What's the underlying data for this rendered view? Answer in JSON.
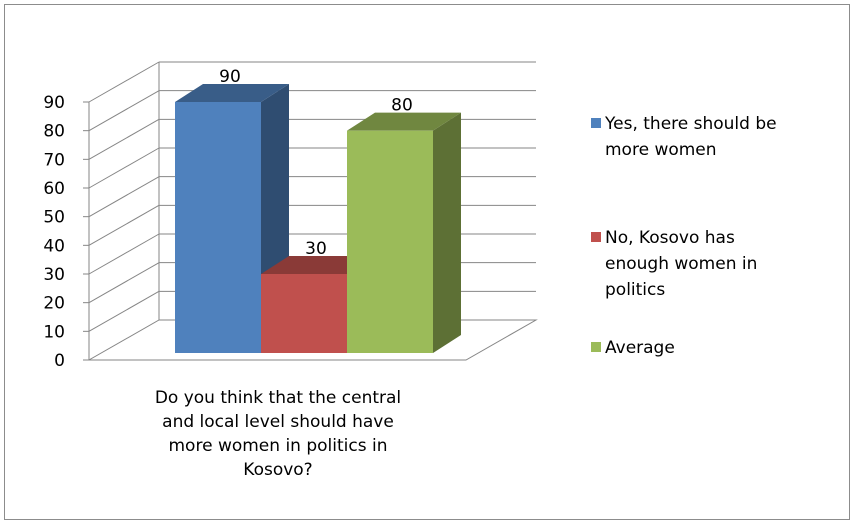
{
  "chart_data": {
    "type": "bar",
    "style": "3d-clustered-column",
    "categories": [
      "Do you think that the central and local level should have more women in politics in Kosovo?"
    ],
    "category_lines": [
      "Do you think that the central",
      "and local level should have",
      "more women in politics in",
      "Kosovo?"
    ],
    "series": [
      {
        "name": "Yes, there should be more women",
        "legend_lines": [
          "Yes, there should be",
          "more women"
        ],
        "values": [
          90
        ],
        "color": "#4F81BD"
      },
      {
        "name": "No, Kosovo has enough women in politics",
        "legend_lines": [
          "No, Kosovo has",
          "enough women in",
          "politics"
        ],
        "values": [
          30
        ],
        "color": "#C0504D"
      },
      {
        "name": "Average",
        "legend_lines": [
          "Average"
        ],
        "values": [
          80
        ],
        "color": "#9BBB59"
      }
    ],
    "data_labels": [
      "90",
      "30",
      "80"
    ],
    "y_ticks": [
      "0",
      "10",
      "20",
      "30",
      "40",
      "50",
      "60",
      "70",
      "80",
      "90"
    ],
    "ylim": [
      0,
      90
    ],
    "grid": true,
    "legend_position": "right"
  }
}
